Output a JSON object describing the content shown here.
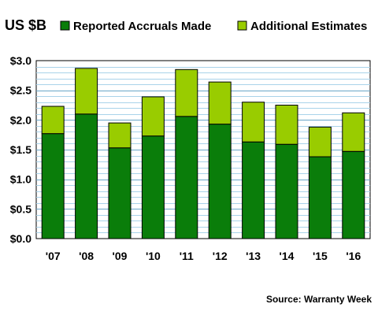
{
  "chart_data": {
    "type": "bar",
    "stacked": true,
    "unit_label": "US $B",
    "categories": [
      "'07",
      "'08",
      "'09",
      "'10",
      "'11",
      "'12",
      "'13",
      "'14",
      "'15",
      "'16"
    ],
    "series": [
      {
        "name": "Reported Accruals Made",
        "color": "#0a7d0a",
        "values": [
          1.77,
          2.1,
          1.53,
          1.73,
          2.06,
          1.93,
          1.63,
          1.59,
          1.38,
          1.47
        ]
      },
      {
        "name": "Additional Estimates",
        "color": "#99cc00",
        "values": [
          0.46,
          0.77,
          0.42,
          0.66,
          0.79,
          0.71,
          0.67,
          0.66,
          0.5,
          0.65
        ]
      }
    ],
    "ylim": [
      0,
      3.0
    ],
    "yticks": [
      0,
      0.5,
      1.0,
      1.5,
      2.0,
      2.5,
      3.0
    ],
    "ytick_labels": [
      "$0.0",
      "$0.5",
      "$1.0",
      "$1.5",
      "$2.0",
      "$2.5",
      "$3.0"
    ],
    "minor_step": 0.1,
    "grid": true,
    "legend_position": "top",
    "source": "Source: Warranty Week"
  }
}
